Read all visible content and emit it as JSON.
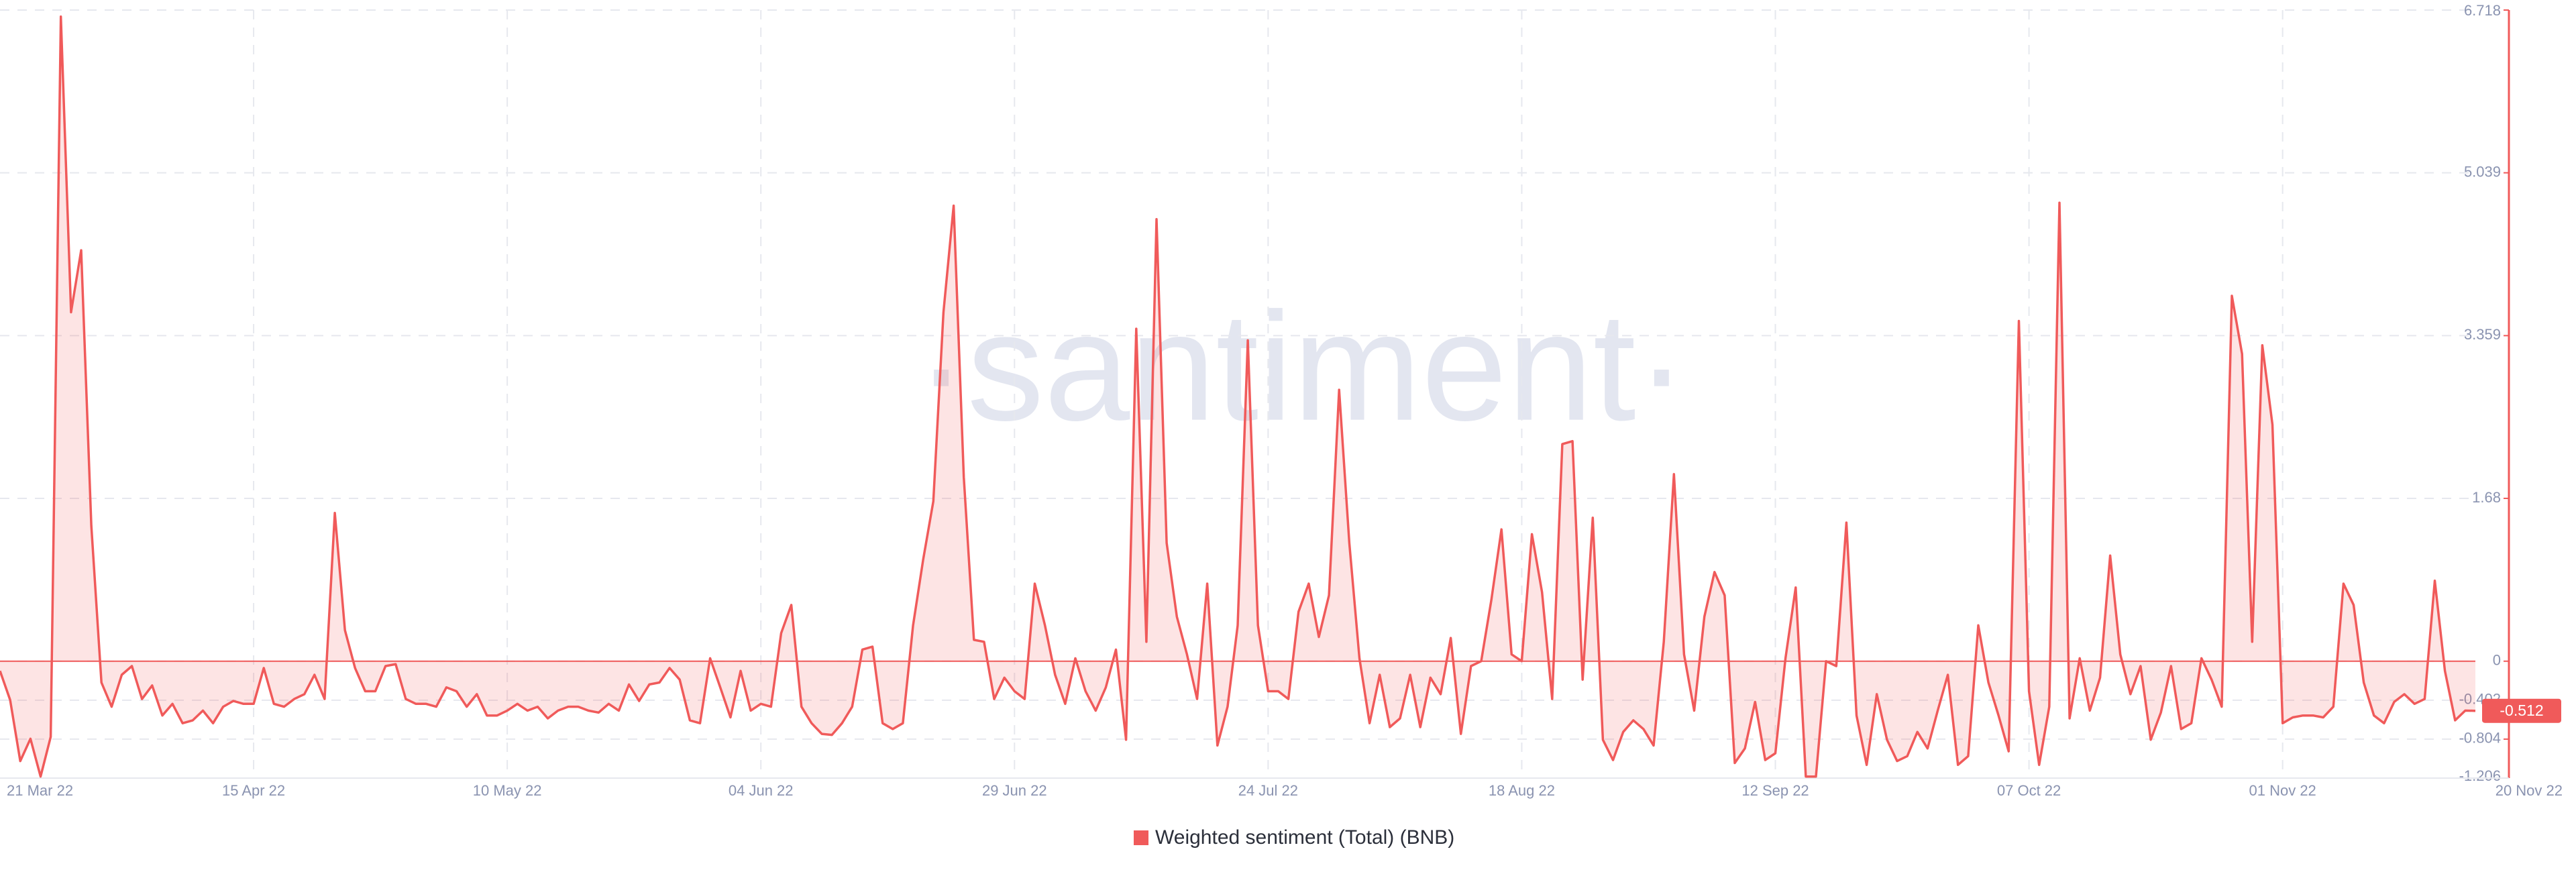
{
  "chart_data": {
    "type": "line",
    "watermark": "·santiment·",
    "categories": [
      "21 Mar 22",
      null,
      null,
      null,
      null,
      null,
      null,
      null,
      null,
      null,
      null,
      null,
      null,
      null,
      null,
      null,
      null,
      null,
      null,
      null,
      null,
      null,
      null,
      null,
      null,
      "15 Apr 22",
      null,
      null,
      null,
      null,
      null,
      null,
      null,
      null,
      null,
      null,
      null,
      null,
      null,
      null,
      null,
      null,
      null,
      null,
      null,
      null,
      null,
      null,
      null,
      null,
      "10 May 22",
      null,
      null,
      null,
      null,
      null,
      null,
      null,
      null,
      null,
      null,
      null,
      null,
      null,
      null,
      null,
      null,
      null,
      null,
      null,
      null,
      null,
      null,
      null,
      null,
      "04 Jun 22",
      null,
      null,
      null,
      null,
      null,
      null,
      null,
      null,
      null,
      null,
      null,
      null,
      null,
      null,
      null,
      null,
      null,
      null,
      null,
      null,
      null,
      null,
      null,
      null,
      "29 Jun 22",
      null,
      null,
      null,
      null,
      null,
      null,
      null,
      null,
      null,
      null,
      null,
      null,
      null,
      null,
      null,
      null,
      null,
      null,
      null,
      null,
      null,
      null,
      null,
      null,
      "24 Jul 22",
      null,
      null,
      null,
      null,
      null,
      null,
      null,
      null,
      null,
      null,
      null,
      null,
      null,
      null,
      null,
      null,
      null,
      null,
      null,
      null,
      null,
      null,
      null,
      null,
      "18 Aug 22",
      null,
      null,
      null,
      null,
      null,
      null,
      null,
      null,
      null,
      null,
      null,
      null,
      null,
      null,
      null,
      null,
      null,
      null,
      null,
      null,
      null,
      null,
      null,
      null,
      "12 Sep 22",
      null,
      null,
      null,
      null,
      null,
      null,
      null,
      null,
      null,
      null,
      null,
      null,
      null,
      null,
      null,
      null,
      null,
      null,
      null,
      null,
      null,
      null,
      null,
      null,
      "07 Oct 22",
      null,
      null,
      null,
      null,
      null,
      null,
      null,
      null,
      null,
      null,
      null,
      null,
      null,
      null,
      null,
      null,
      null,
      null,
      null,
      null,
      null,
      null,
      null,
      null,
      "01 Nov 22",
      null,
      null,
      null,
      null,
      null,
      null,
      null,
      null,
      null,
      null,
      null,
      null,
      null,
      null,
      null,
      null,
      null,
      null,
      "20 Nov 22"
    ],
    "series_name": "Weighted sentiment (Total) (BNB)",
    "color": "#f05a5a",
    "values": [
      -0.1,
      -0.4,
      -1.03,
      -0.8,
      -1.19,
      -0.78,
      6.65,
      3.6,
      4.24,
      1.4,
      -0.22,
      -0.47,
      -0.14,
      -0.05,
      -0.39,
      -0.25,
      -0.56,
      -0.44,
      -0.64,
      -0.61,
      -0.51,
      -0.64,
      -0.47,
      -0.41,
      -0.44,
      -0.44,
      -0.07,
      -0.44,
      -0.47,
      -0.39,
      -0.34,
      -0.14,
      -0.39,
      1.53,
      0.32,
      -0.07,
      -0.31,
      -0.31,
      -0.05,
      -0.03,
      -0.39,
      -0.44,
      -0.44,
      -0.47,
      -0.27,
      -0.31,
      -0.47,
      -0.34,
      -0.56,
      -0.56,
      -0.51,
      -0.44,
      -0.51,
      -0.47,
      -0.59,
      -0.51,
      -0.47,
      -0.47,
      -0.51,
      -0.53,
      -0.44,
      -0.51,
      -0.24,
      -0.41,
      -0.24,
      -0.22,
      -0.07,
      -0.19,
      -0.61,
      -0.64,
      0.03,
      -0.27,
      -0.58,
      -0.1,
      -0.51,
      -0.44,
      -0.47,
      0.29,
      0.58,
      -0.47,
      -0.64,
      -0.75,
      -0.76,
      -0.64,
      -0.47,
      0.12,
      0.15,
      -0.64,
      -0.7,
      -0.64,
      0.37,
      1.05,
      1.65,
      3.6,
      4.7,
      1.9,
      0.22,
      0.2,
      -0.39,
      -0.17,
      -0.31,
      -0.39,
      0.8,
      0.37,
      -0.14,
      -0.44,
      0.03,
      -0.31,
      -0.51,
      -0.27,
      0.12,
      -0.81,
      3.43,
      0.2,
      4.56,
      1.22,
      0.46,
      0.07,
      -0.39,
      0.8,
      -0.87,
      -0.47,
      0.37,
      3.31,
      0.37,
      -0.31,
      -0.31,
      -0.39,
      0.51,
      0.8,
      0.25,
      0.68,
      2.8,
      1.22,
      0.03,
      -0.64,
      -0.14,
      -0.68,
      -0.59,
      -0.14,
      -0.68,
      -0.17,
      -0.34,
      0.24,
      -0.75,
      -0.05,
      0,
      0.63,
      1.36,
      0.07,
      0,
      1.31,
      0.71,
      -0.39,
      2.24,
      2.27,
      -0.19,
      1.48,
      -0.81,
      -1.02,
      -0.73,
      -0.61,
      -0.7,
      -0.87,
      0.2,
      1.93,
      0.07,
      -0.51,
      0.46,
      0.92,
      0.68,
      -1.05,
      -0.9,
      -0.42,
      -1.02,
      -0.95,
      0.03,
      0.76,
      -1.19,
      -1.19,
      0,
      -0.05,
      1.43,
      -0.56,
      -1.07,
      -0.34,
      -0.81,
      -1.03,
      -0.98,
      -0.73,
      -0.9,
      -0.51,
      -0.14,
      -1.07,
      -0.98,
      0.37,
      -0.22,
      -0.56,
      -0.93,
      3.51,
      -0.31,
      -1.07,
      -0.47,
      4.73,
      -0.59,
      0.03,
      -0.51,
      -0.17,
      1.09,
      0.07,
      -0.34,
      -0.05,
      -0.81,
      -0.53,
      -0.05,
      -0.7,
      -0.64,
      0.03,
      -0.19,
      -0.47,
      3.77,
      3.17,
      0.2,
      3.26,
      2.44,
      -0.64,
      -0.58,
      -0.56,
      -0.56,
      -0.58,
      -0.47,
      0.8,
      0.58,
      -0.22,
      -0.56,
      -0.64,
      -0.42,
      -0.34,
      -0.44,
      -0.39,
      0.83,
      -0.1,
      -0.61,
      -0.51,
      -0.512
    ],
    "ylim": [
      -1.206,
      6.718
    ],
    "yticks": [
      6.718,
      5.039,
      3.359,
      1.68,
      0,
      -0.402,
      -0.804,
      -1.206
    ],
    "grid": true
  }
}
